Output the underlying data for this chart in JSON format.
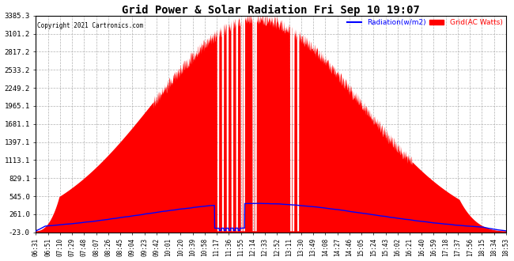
{
  "title": "Grid Power & Solar Radiation Fri Sep 10 19:07",
  "copyright": "Copyright 2021 Cartronics.com",
  "legend_radiation": "Radiation(w/m2)",
  "legend_grid": "Grid(AC Watts)",
  "y_ticks": [
    -23.0,
    261.0,
    545.0,
    829.1,
    1113.1,
    1397.1,
    1681.1,
    1965.1,
    2249.2,
    2533.2,
    2817.2,
    3101.2,
    3385.3
  ],
  "x_labels": [
    "06:31",
    "06:51",
    "07:10",
    "07:29",
    "07:48",
    "08:07",
    "08:26",
    "08:45",
    "09:04",
    "09:23",
    "09:42",
    "10:01",
    "10:20",
    "10:39",
    "10:58",
    "11:17",
    "11:36",
    "11:55",
    "12:14",
    "12:33",
    "12:52",
    "13:11",
    "13:30",
    "13:49",
    "14:08",
    "14:27",
    "14:46",
    "15:05",
    "15:24",
    "15:43",
    "16:02",
    "16:21",
    "16:40",
    "16:59",
    "17:18",
    "17:37",
    "17:56",
    "18:15",
    "18:34",
    "18:53"
  ],
  "grid_color": "#FF0000",
  "radiation_color": "#0000FF",
  "background_color": "#FFFFFF",
  "plot_bg_color": "#FFFFFF",
  "title_color": "#000000",
  "copyright_color": "#000000",
  "y_min": -23.0,
  "y_max": 3385.3
}
